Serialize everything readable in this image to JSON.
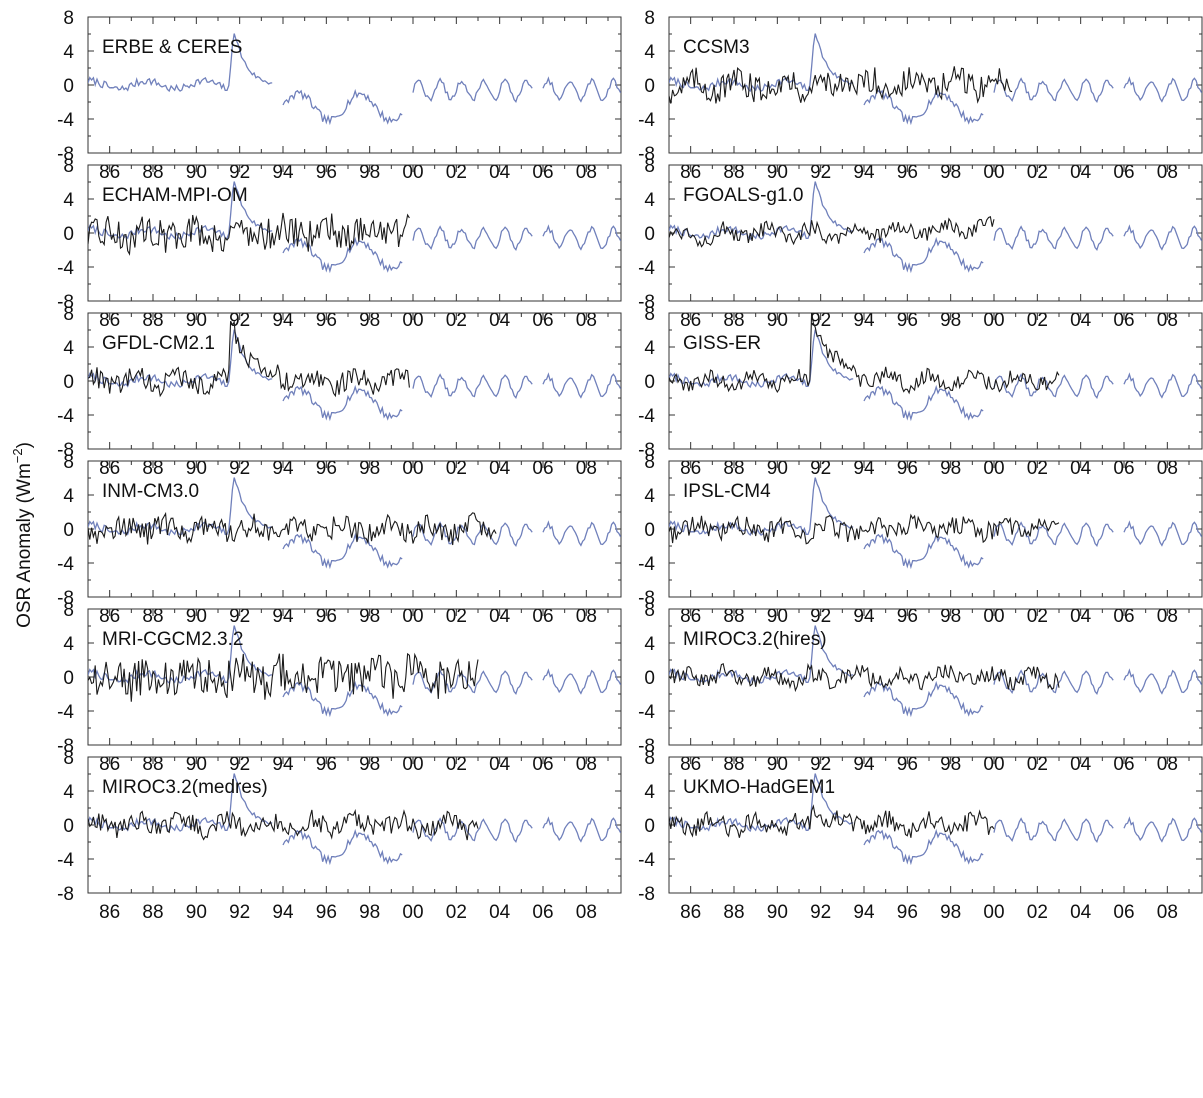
{
  "figure": {
    "ylabel_main": "OSR Anomaly (Wm",
    "ylabel_sup": "−2",
    "ylabel_close": ")"
  },
  "colors": {
    "observed": "#7080bb",
    "model": "#1a1a1a",
    "axis": "#333333"
  },
  "chart_data": {
    "type": "line",
    "x_unit": "year",
    "xlim": [
      1985.0,
      2009.6
    ],
    "ylim": [
      -8,
      8
    ],
    "yticks": [
      "8",
      "4",
      "0",
      "-4",
      "-8"
    ],
    "xticks": [
      "86",
      "88",
      "90",
      "92",
      "94",
      "96",
      "98",
      "00",
      "02",
      "04",
      "06",
      "08"
    ],
    "observed_segments": [
      [
        1985.0,
        1993.5
      ],
      [
        1994.0,
        1999.5
      ],
      [
        2000.0,
        2005.5
      ],
      [
        2006.0,
        2009.6
      ]
    ],
    "panels": [
      {
        "title": "ERBE & CERES",
        "model": null
      },
      {
        "title": "CCSM3",
        "model": {
          "range": [
            1985.0,
            2000.9
          ],
          "amp": 1.6,
          "trend": 0.4,
          "volcanic": 0
        }
      },
      {
        "title": "ECHAM-MPI-OM",
        "model": {
          "range": [
            1985.0,
            1999.9
          ],
          "amp": 1.9,
          "trend": 0.6,
          "volcanic": 0
        }
      },
      {
        "title": "FGOALS-g1.0",
        "model": {
          "range": [
            1985.0,
            2000.0
          ],
          "amp": 1.0,
          "trend": 0.8,
          "volcanic": 0
        }
      },
      {
        "title": "GFDL-CM2.1",
        "model": {
          "range": [
            1985.0,
            1999.9
          ],
          "amp": 1.2,
          "trend": 0.0,
          "volcanic": 8
        }
      },
      {
        "title": "GISS-ER",
        "model": {
          "range": [
            1985.0,
            2003.0
          ],
          "amp": 0.9,
          "trend": 0.2,
          "volcanic": 9
        }
      },
      {
        "title": "INM-CM3.0",
        "model": {
          "range": [
            1985.0,
            2003.9
          ],
          "amp": 1.3,
          "trend": 0.0,
          "volcanic": 0
        }
      },
      {
        "title": "IPSL-CM4",
        "model": {
          "range": [
            1985.0,
            2003.0
          ],
          "amp": 1.2,
          "trend": 0.0,
          "volcanic": 0
        }
      },
      {
        "title": "MRI-CGCM2.3.2",
        "model": {
          "range": [
            1985.0,
            2003.0
          ],
          "amp": 2.3,
          "trend": 0.5,
          "volcanic": 0
        }
      },
      {
        "title": "MIROC3.2(hires)",
        "model": {
          "range": [
            1985.0,
            2003.0
          ],
          "amp": 1.1,
          "trend": 0.0,
          "volcanic": 0
        }
      },
      {
        "title": "MIROC3.2(medres)",
        "model": {
          "range": [
            1985.0,
            2003.0
          ],
          "amp": 1.2,
          "trend": 0.0,
          "volcanic": 0
        }
      },
      {
        "title": "UKMO-HadGEM1",
        "model": {
          "range": [
            1985.0,
            2000.0
          ],
          "amp": 1.1,
          "trend": 0.0,
          "volcanic": 2
        }
      }
    ]
  }
}
